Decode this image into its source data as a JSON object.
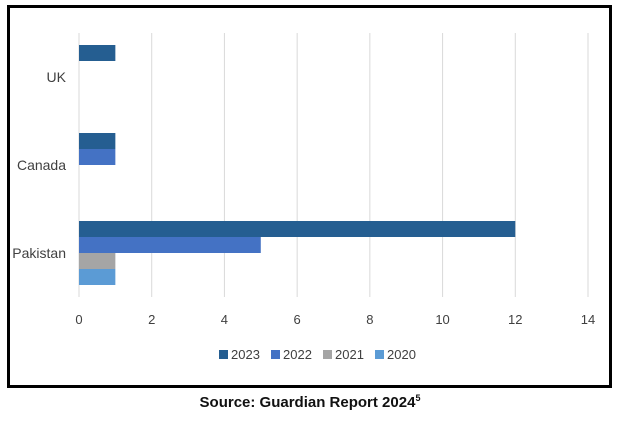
{
  "chart_data": {
    "type": "bar",
    "orientation": "horizontal",
    "categories": [
      "UK",
      "Canada",
      "Pakistan"
    ],
    "series": [
      {
        "name": "2023",
        "values": [
          1,
          1,
          12
        ],
        "color": "#255E91"
      },
      {
        "name": "2022",
        "values": [
          0,
          1,
          5
        ],
        "color": "#4472C4"
      },
      {
        "name": "2021",
        "values": [
          0,
          0,
          1
        ],
        "color": "#A5A5A5"
      },
      {
        "name": "2020",
        "values": [
          0,
          0,
          1
        ],
        "color": "#5B9BD5"
      }
    ],
    "xlim": [
      0,
      14
    ],
    "xticks": [
      0,
      2,
      4,
      6,
      8,
      10,
      12,
      14
    ],
    "grid": true,
    "legend_position": "bottom"
  },
  "caption": {
    "text": "Source: Guardian Report 2024",
    "superscript": "5"
  }
}
